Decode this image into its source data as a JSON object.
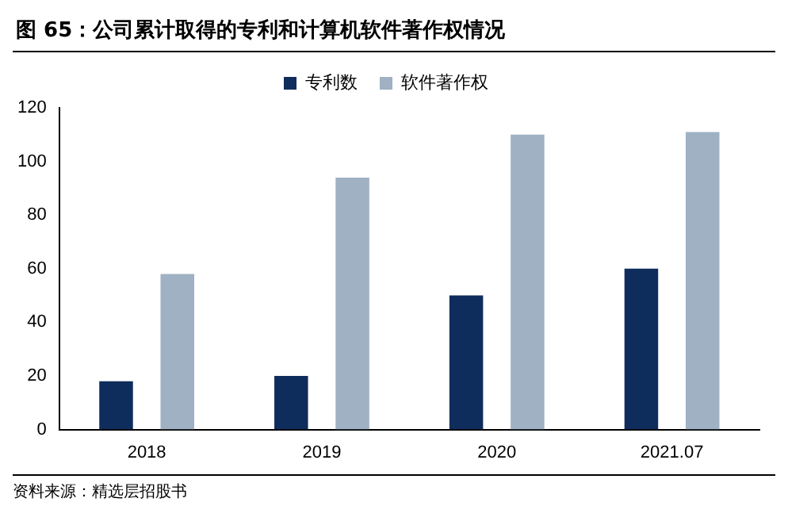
{
  "chart_data": {
    "type": "bar",
    "title": "图 65：公司累计取得的专利和计算机软件著作权情况",
    "categories": [
      "2018",
      "2019",
      "2020",
      "2021.07"
    ],
    "series": [
      {
        "name": "专利数",
        "color": "#0f2d5c",
        "values": [
          18,
          20,
          50,
          60
        ]
      },
      {
        "name": "软件著作权",
        "color": "#9fb1c2",
        "values": [
          58,
          94,
          110,
          111
        ]
      }
    ],
    "ylim": [
      0,
      120
    ],
    "yticks": [
      0,
      20,
      40,
      60,
      80,
      100,
      120
    ],
    "grid": false,
    "legend": "top",
    "annotations": [
      "资料来源：精选层招股书"
    ]
  }
}
